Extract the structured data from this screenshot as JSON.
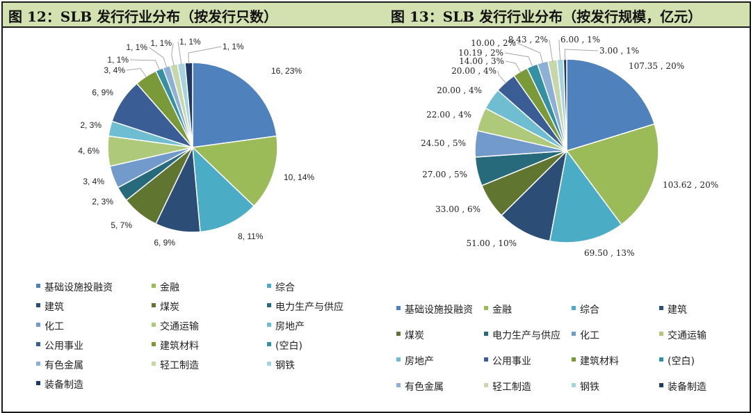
{
  "titles": {
    "left": "图 12：SLB 发行行业分布（按发行只数）",
    "right": "图 13：SLB 发行行业分布（按发行规模，亿元）"
  },
  "colors": {
    "header_bg": "#d3e1b1",
    "palette": [
      "#4f81bd",
      "#9bbb59",
      "#4bacc6",
      "#2c4d75",
      "#5f7530",
      "#276a7c",
      "#729aca",
      "#afc97a",
      "#6fbdd1",
      "#3a5d96",
      "#7a9a3a",
      "#3391a3",
      "#8eb0d6",
      "#c6d8a8",
      "#a6d3e0",
      "#1f3864"
    ]
  },
  "chart_data": [
    {
      "type": "pie",
      "title": "图 12：SLB 发行行业分布（按发行只数）",
      "categories": [
        "基础设施投融资",
        "金融",
        "综合",
        "建筑",
        "煤炭",
        "电力生产与供应",
        "化工",
        "交通运输",
        "房地产",
        "公用事业",
        "建筑材料",
        "(空白)",
        "有色金属",
        "轻工制造",
        "钢铁",
        "装备制造"
      ],
      "values": [
        16,
        10,
        8,
        6,
        5,
        2,
        3,
        4,
        2,
        6,
        3,
        1,
        1,
        1,
        1,
        1
      ],
      "labels": [
        "16, 23%",
        "10, 14%",
        "8, 11%",
        "6, 9%",
        "5, 7%",
        "2, 3%",
        "3, 4%",
        "4, 6%",
        "2, 3%",
        "6, 9%",
        "3, 4%",
        "1, 1%",
        "1, 1%",
        "1, 1%",
        "1, 1%",
        "1, 1%"
      ]
    },
    {
      "type": "pie",
      "title": "图 13：SLB 发行行业分布（按发行规模，亿元）",
      "categories": [
        "基础设施投融资",
        "金融",
        "综合",
        "建筑",
        "煤炭",
        "电力生产与供应",
        "化工",
        "交通运输",
        "房地产",
        "公用事业",
        "建筑材料",
        "(空白)",
        "有色金属",
        "轻工制造",
        "钢铁",
        "装备制造"
      ],
      "values": [
        107.35,
        103.62,
        69.5,
        51.0,
        33.0,
        27.0,
        24.5,
        22.0,
        20.0,
        20.0,
        14.0,
        10.19,
        10.0,
        8.43,
        6.0,
        3.0
      ],
      "labels": [
        "107.35 , 20%",
        "103.62 , 20%",
        "69.50 , 13%",
        "51.00 , 10%",
        "33.00 , 6%",
        "27.00 , 5%",
        "24.50 , 5%",
        "22.00 , 4%",
        "20.00 , 4%",
        "20.00 , 4%",
        "14.00 , 3%",
        "10.19 , 2%",
        "10.00 , 2%",
        "8.43 , 2%",
        "6.00 , 1%",
        "3.00 , 1%"
      ]
    }
  ]
}
